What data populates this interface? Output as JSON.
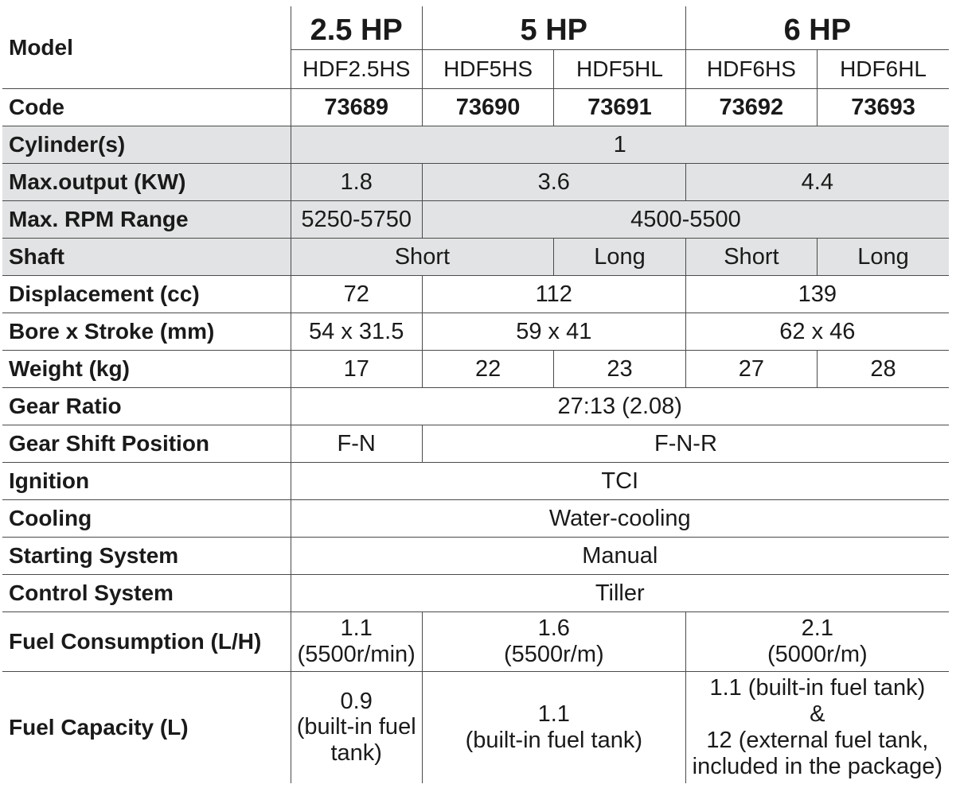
{
  "header": {
    "model_label": "Model",
    "groups": [
      {
        "title": "2.5 HP",
        "models": [
          "HDF2.5HS"
        ]
      },
      {
        "title": "5 HP",
        "models": [
          "HDF5HS",
          "HDF5HL"
        ]
      },
      {
        "title": "6 HP",
        "models": [
          "HDF6HS",
          "HDF6HL"
        ]
      }
    ]
  },
  "rows": {
    "code": {
      "label": "Code",
      "values": [
        "73689",
        "73690",
        "73691",
        "73692",
        "73693"
      ]
    },
    "cylinders": {
      "label": "Cylinder(s)",
      "value": "1"
    },
    "max_output": {
      "label": "Max.output (KW)",
      "values": [
        "1.8",
        "3.6",
        "4.4"
      ]
    },
    "rpm": {
      "label": "Max. RPM Range",
      "values": [
        "5250-5750",
        "4500-5500"
      ]
    },
    "shaft": {
      "label": "Shaft",
      "values": [
        "Short",
        "Long",
        "Short",
        "Long"
      ]
    },
    "displacement": {
      "label": "Displacement (cc)",
      "values": [
        "72",
        "112",
        "139"
      ]
    },
    "bore_stroke": {
      "label": "Bore x Stroke (mm)",
      "values": [
        "54 x 31.5",
        "59 x 41",
        "62 x 46"
      ]
    },
    "weight": {
      "label": "Weight (kg)",
      "values": [
        "17",
        "22",
        "23",
        "27",
        "28"
      ]
    },
    "gear_ratio": {
      "label": "Gear Ratio",
      "value": "27:13 (2.08)"
    },
    "gear_shift": {
      "label": "Gear Shift Position",
      "values": [
        "F-N",
        "F-N-R"
      ]
    },
    "ignition": {
      "label": "Ignition",
      "value": "TCI"
    },
    "cooling": {
      "label": "Cooling",
      "value": "Water-cooling"
    },
    "starting": {
      "label": "Starting System",
      "value": "Manual"
    },
    "control": {
      "label": "Control System",
      "value": "Tiller"
    },
    "fuel_consumption": {
      "label": "Fuel Consumption (L/H)",
      "values": [
        [
          "1.1",
          "(5500r/min)"
        ],
        [
          "1.6",
          "(5500r/m)"
        ],
        [
          "2.1",
          "(5000r/m)"
        ]
      ]
    },
    "fuel_capacity": {
      "label": "Fuel Capacity (L)",
      "values": [
        [
          "0.9",
          "(built-in fuel",
          "tank)"
        ],
        [
          "1.1",
          "(built-in fuel tank)"
        ],
        [
          "1.1 (built-in fuel tank)",
          "&",
          "12 (external fuel tank,",
          "included in the package)"
        ]
      ]
    }
  }
}
